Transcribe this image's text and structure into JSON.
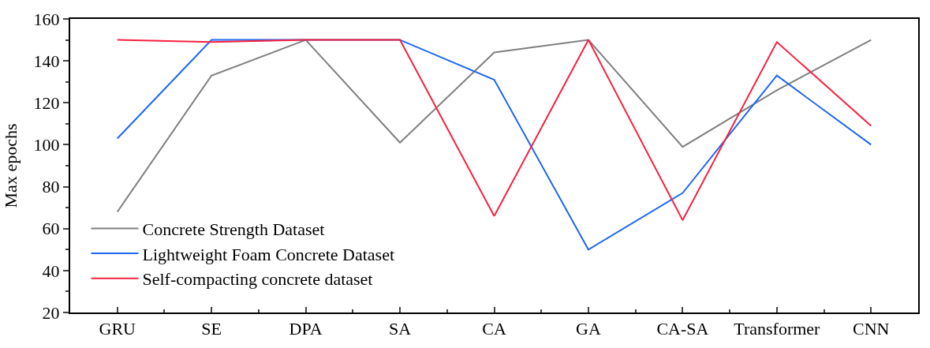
{
  "chart_data": {
    "type": "line",
    "ylabel": "Max epochs",
    "categories": [
      "GRU",
      "SE",
      "DPA",
      "SA",
      "CA",
      "GA",
      "CA-SA",
      "Transformer",
      "CNN"
    ],
    "series": [
      {
        "name": "Concrete Strength Dataset",
        "color": "#7f7f7f",
        "values": [
          68,
          133,
          150,
          101,
          144,
          150,
          99,
          126,
          150
        ]
      },
      {
        "name": "Lightweight Foam Concrete Dataset",
        "color": "#1f66f0",
        "values": [
          103,
          150,
          150,
          150,
          131,
          50,
          77,
          133,
          100
        ]
      },
      {
        "name": "Self-compacting concrete dataset",
        "color": "#f5213f",
        "values": [
          150,
          149,
          150,
          150,
          66,
          150,
          64,
          149,
          109
        ]
      }
    ],
    "ylim": [
      20,
      160
    ],
    "yticks": [
      20,
      40,
      60,
      80,
      100,
      120,
      140,
      160
    ],
    "legend": "bottom left",
    "marker": "none",
    "line_style": "solid"
  }
}
